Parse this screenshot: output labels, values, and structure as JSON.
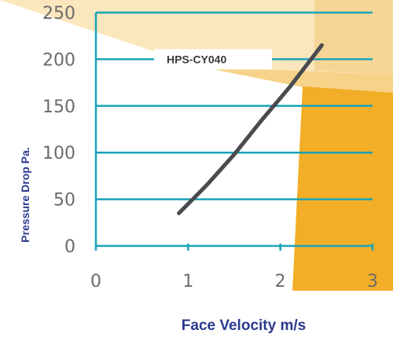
{
  "chart_data": {
    "type": "line",
    "title": "",
    "xlabel": "Face Velocity m/s",
    "ylabel": "Pressure Drop Pa.",
    "xlim": [
      0,
      3
    ],
    "ylim": [
      0,
      250
    ],
    "x_ticks": [
      "0",
      "1",
      "2",
      "3"
    ],
    "y_ticks": [
      "0",
      "50",
      "100",
      "150",
      "200",
      "250"
    ],
    "grid": "horizontal",
    "series": [
      {
        "name": "HPS-CY040",
        "x": [
          0.9,
          1.2,
          1.5,
          1.8,
          2.1,
          2.45
        ],
        "y": [
          35,
          65,
          98,
          135,
          170,
          215
        ]
      }
    ]
  },
  "colors": {
    "gridline": "#1aa3b8",
    "axis": "#1aa3b8",
    "curve": "#4a4a4f",
    "band_light": "#fbe6bd",
    "band_mid": "#f7cf7a",
    "band_dark": "#f2ae26",
    "band_corner": "#f6d596"
  }
}
